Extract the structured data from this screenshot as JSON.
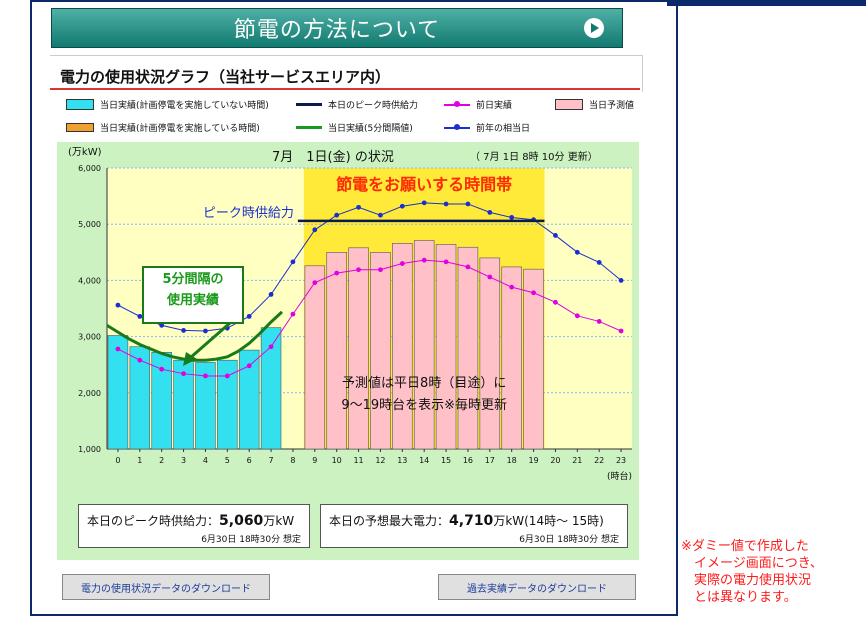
{
  "colors": {
    "accent": "#117a70",
    "frame": "#0b2a6b",
    "note": "#ff1a1a",
    "peak_line": "#0a1a4a",
    "prev_day": "#e000e0",
    "prev_year": "#1a2fd0",
    "five_min": "#1a7a1a",
    "actual_bar": "#33e0f0",
    "forecast_bar": "#ffc0c8"
  },
  "header": {
    "title": "節電の方法について",
    "icon": "play-icon"
  },
  "section": {
    "title": "電力の使用状況グラフ（当社サービスエリア内）"
  },
  "legend": {
    "actual_no_outage": "当日実績(計画停電を実施していない時間)",
    "peak_supply": "本日のピーク時供給力",
    "prev_day": "前日実績",
    "forecast": "当日予測値",
    "actual_outage": "当日実績(計画停電を実施している時間)",
    "five_min": "当日実績(5分間隔値)",
    "prev_year": "前年の相当日"
  },
  "chart_header": {
    "title": "7月　1日(金) の状況",
    "update": "（ 7月 1日 8時 10分 更新）",
    "unit": "(万kW)"
  },
  "chart_data": {
    "type": "bar",
    "x": [
      0,
      1,
      2,
      3,
      4,
      5,
      6,
      7,
      8,
      9,
      10,
      11,
      12,
      13,
      14,
      15,
      16,
      17,
      18,
      19,
      20,
      21,
      22,
      23
    ],
    "x_tick_labels": [
      "0",
      "1",
      "2",
      "3",
      "4",
      "5",
      "6",
      "7",
      "8",
      "9",
      "10",
      "11",
      "12",
      "13",
      "14",
      "15",
      "16",
      "17",
      "18",
      "19",
      "20",
      "21",
      "22",
      "23"
    ],
    "xlabel": "(時台)",
    "ylim": [
      1000,
      6000
    ],
    "yticks": [
      1000,
      2000,
      3000,
      4000,
      5000,
      6000
    ],
    "ytick_labels": [
      "1,000",
      "2,000",
      "3,000",
      "4,000",
      "5,000",
      "6,000"
    ],
    "series": [
      {
        "name": "当日実績(計画停電を実施していない時間)",
        "type": "bar",
        "x": [
          0,
          1,
          2,
          3,
          4,
          5,
          6,
          7
        ],
        "values": [
          3020,
          2820,
          2720,
          2580,
          2540,
          2580,
          2760,
          3160
        ]
      },
      {
        "name": "当日予測値",
        "type": "bar",
        "x": [
          9,
          10,
          11,
          12,
          13,
          14,
          15,
          16,
          17,
          18,
          19
        ],
        "values": [
          4260,
          4500,
          4580,
          4500,
          4660,
          4710,
          4640,
          4590,
          4400,
          4240,
          4200
        ]
      },
      {
        "name": "前日実績",
        "type": "line",
        "values": [
          2780,
          2580,
          2420,
          2340,
          2300,
          2300,
          2480,
          2820,
          3400,
          3960,
          4130,
          4190,
          4190,
          4300,
          4360,
          4330,
          4240,
          4060,
          3880,
          3780,
          3610,
          3370,
          3270,
          3100
        ]
      },
      {
        "name": "前年の相当日",
        "type": "line",
        "values": [
          3560,
          3360,
          3200,
          3110,
          3100,
          3150,
          3360,
          3750,
          4330,
          4900,
          5160,
          5300,
          5160,
          5320,
          5380,
          5360,
          5360,
          5210,
          5120,
          5080,
          4800,
          4500,
          4320,
          4000
        ]
      },
      {
        "name": "本日のピーク時供給力",
        "type": "hline",
        "x_range": [
          9,
          19
        ],
        "value": 5060
      },
      {
        "name": "当日実績(5分間隔値)",
        "type": "line",
        "x": [
          -0.5,
          0,
          0.5,
          1,
          1.5,
          2,
          2.5,
          3,
          3.5,
          4,
          4.5,
          5,
          5.5,
          6,
          6.5,
          7,
          7.5
        ],
        "values": [
          3200,
          3080,
          2960,
          2860,
          2780,
          2700,
          2640,
          2600,
          2580,
          2580,
          2600,
          2640,
          2740,
          2880,
          3060,
          3260,
          3440
        ]
      }
    ],
    "annotations": {
      "saving_band_label": "節電をお願いする時間帯",
      "peak_label": "ピーク時供給力",
      "five_min_label": [
        "5分間隔の",
        "使用実績"
      ],
      "forecast_note": [
        "予測値は平日8時（目途）に",
        "9～19時台を表示※毎時更新"
      ]
    }
  },
  "info": {
    "peak_supply_label": "本日のピーク時供給力：",
    "peak_supply_value": "5,060",
    "peak_supply_unit": "万kW",
    "peak_supply_note": "6月30日 18時30分 想定",
    "forecast_max_label": "本日の予想最大電力：",
    "forecast_max_value": "4,710",
    "forecast_max_unit": "万kW(14時～ 15時)",
    "forecast_max_note": "6月30日 18時30分 想定"
  },
  "buttons": {
    "usage_download": "電力の使用状況データのダウンロード",
    "past_download": "過去実績データのダウンロード"
  },
  "note": "※ダミー値で作成した\n　イメージ画面につき、\n　実際の電力使用状況\n　とは異なります。"
}
